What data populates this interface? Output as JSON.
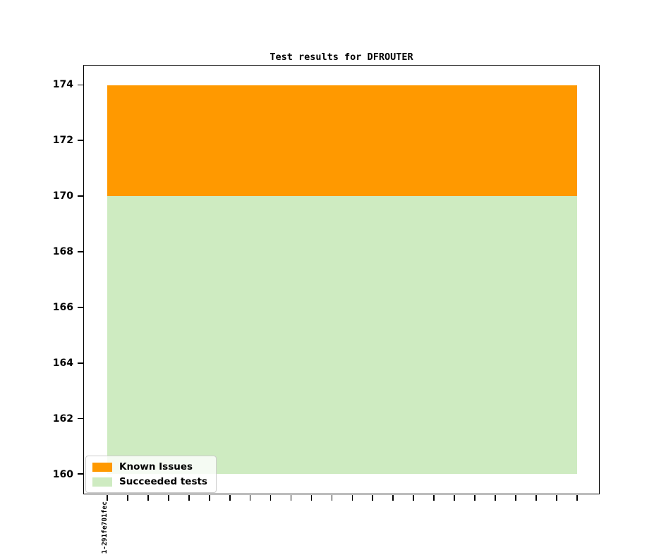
{
  "figure": {
    "background": "#ffffff"
  },
  "chart_data": {
    "type": "area",
    "stacked": true,
    "title": "Test results for DFROUTER",
    "xlabel": "",
    "ylabel": "",
    "grid": false,
    "x_points": 24,
    "x_tick_labels_visible": [
      "1-291fe701fec"
    ],
    "yticks": [
      160,
      162,
      164,
      166,
      168,
      170,
      172,
      174
    ],
    "ylim": [
      159.3,
      174.7
    ],
    "series": [
      {
        "name": "Known Issues",
        "color": "#ff9900",
        "value_per_x": 4,
        "constant_across_x": true,
        "band_top": 174,
        "band_bottom": 170
      },
      {
        "name": "Succeeded tests",
        "color": "#ceebc1",
        "value_per_x": 170,
        "constant_across_x": true,
        "band_top": 170,
        "band_bottom": 160
      }
    ],
    "total_tests": 174,
    "legend": {
      "position": "lower-left",
      "entries": [
        "Known Issues",
        "Succeeded tests"
      ]
    }
  }
}
